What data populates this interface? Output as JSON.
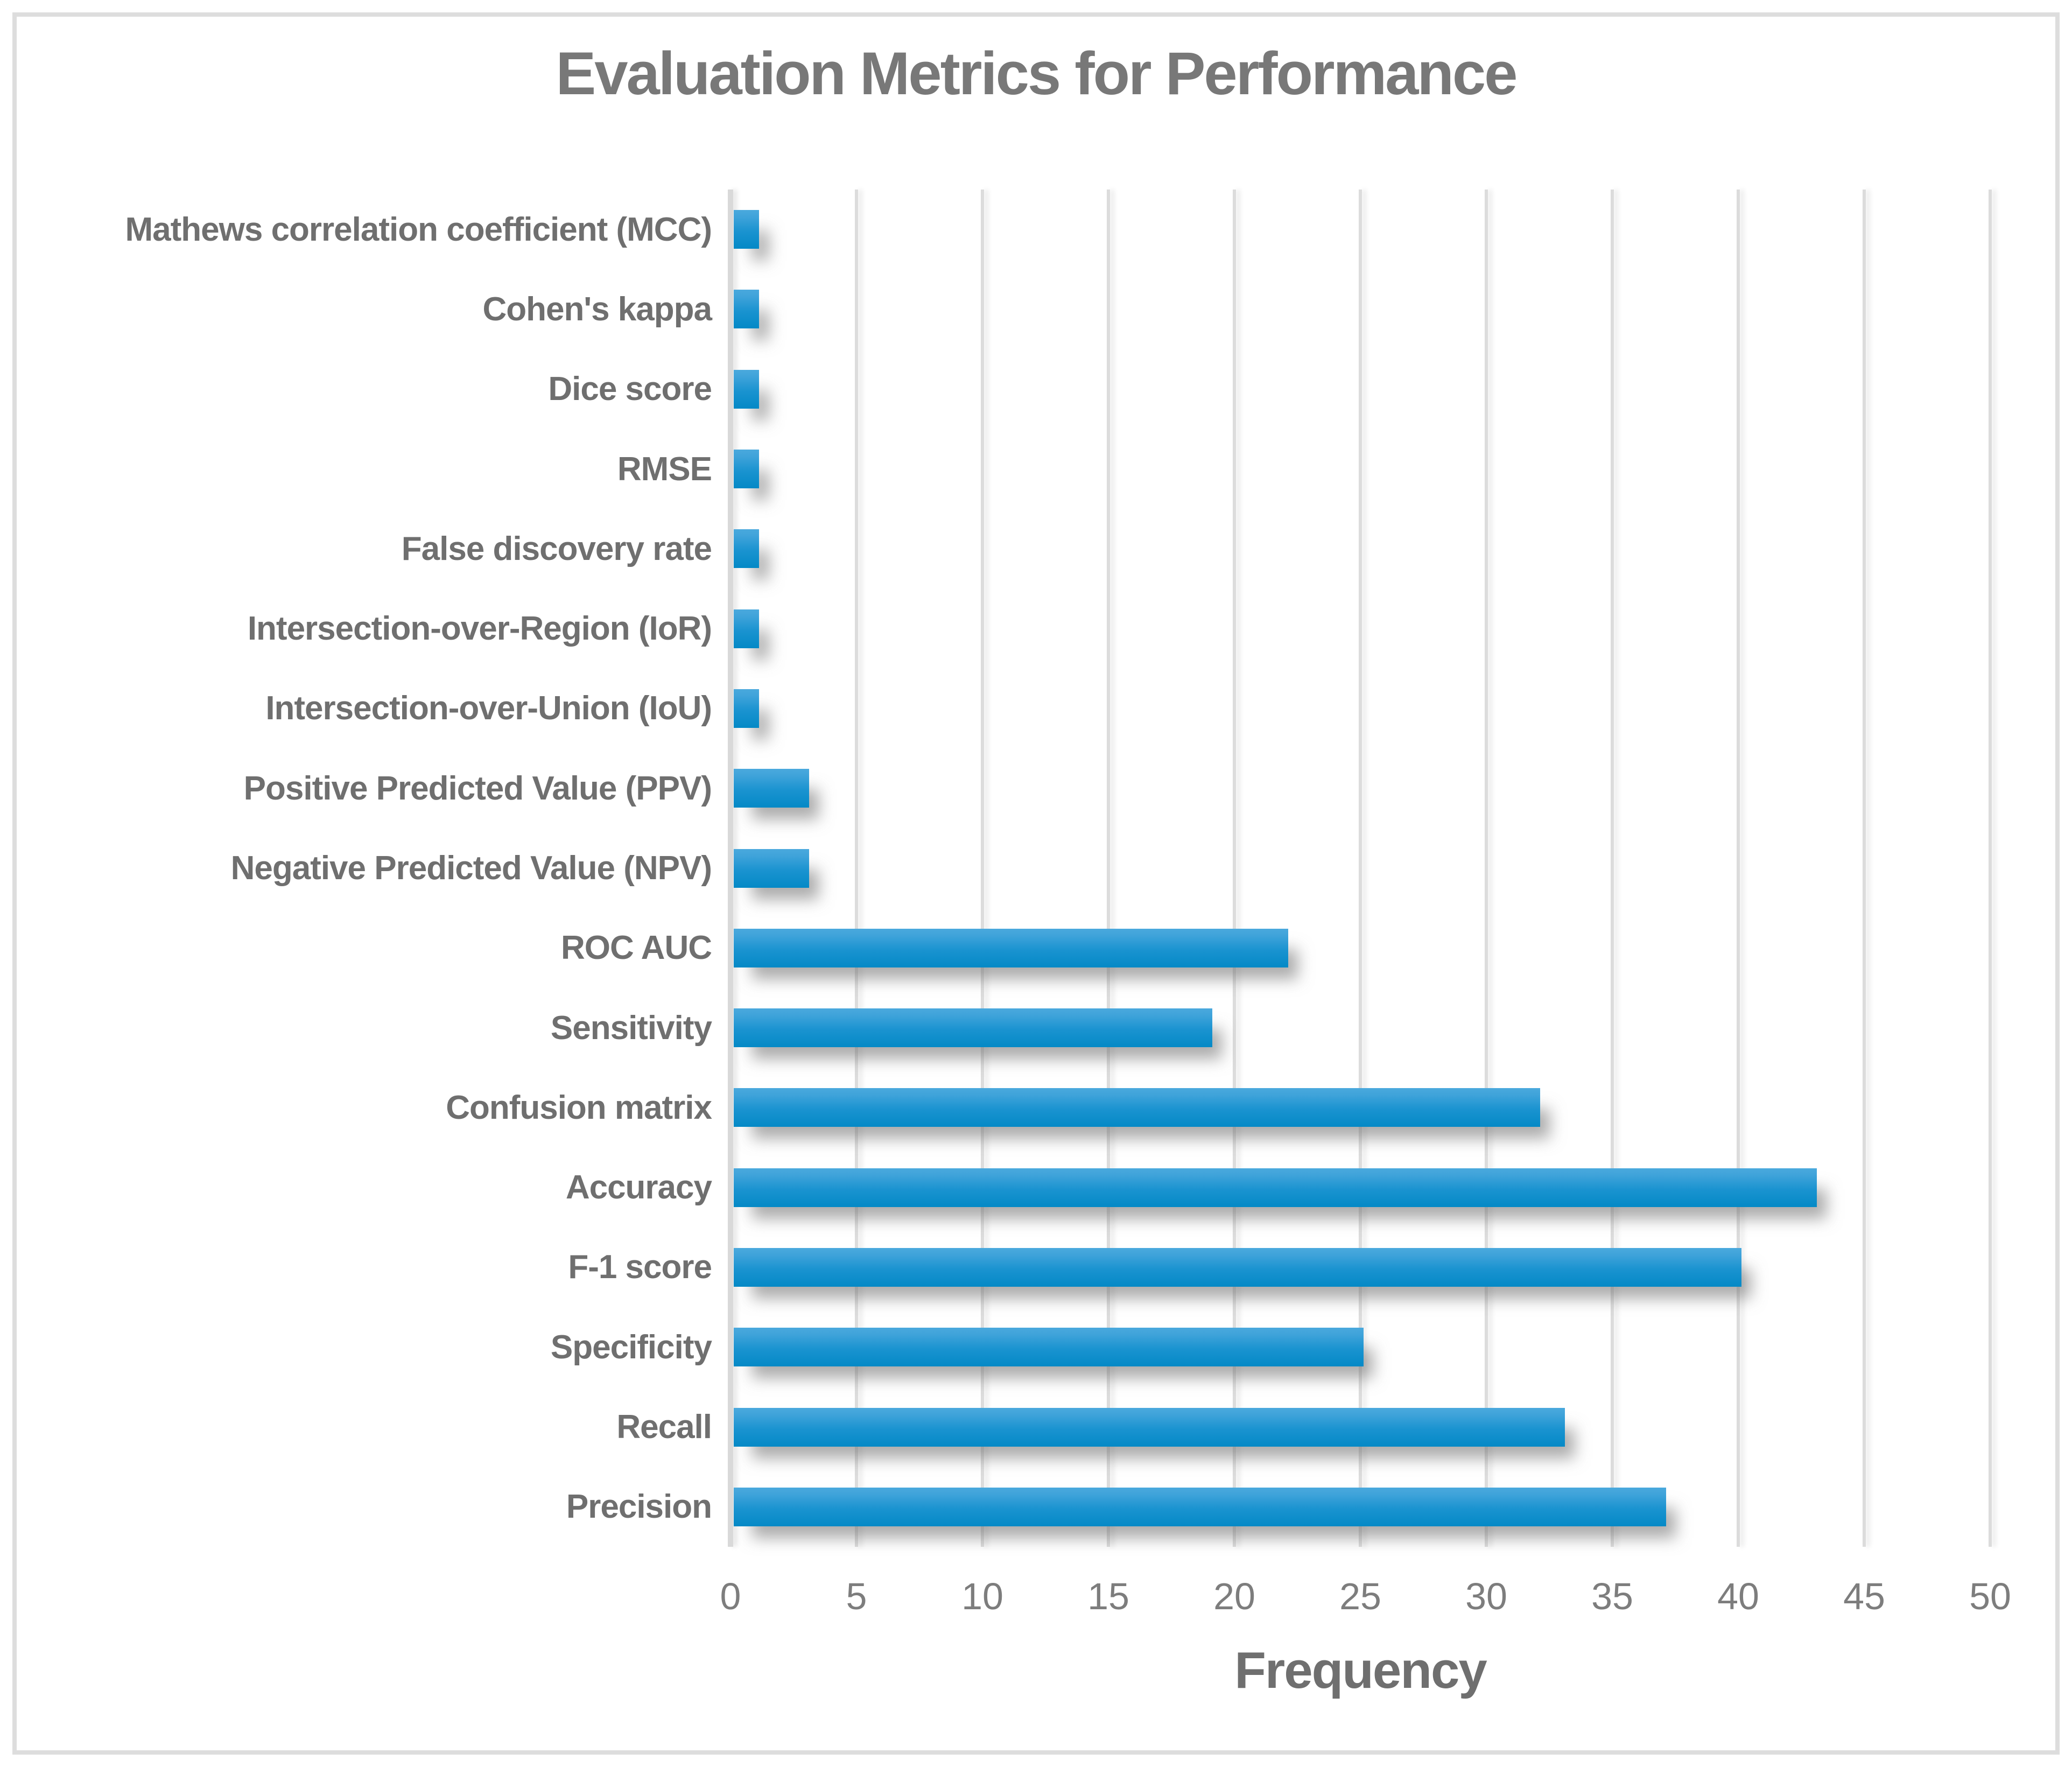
{
  "figure": {
    "border_color": "#dddddd",
    "background": "#ffffff"
  },
  "chart_data": {
    "type": "bar",
    "orientation": "horizontal",
    "title": "Evaluation Metrics for Performance",
    "xlabel": "Frequency",
    "ylabel": "",
    "categories": [
      "Mathews correlation coefficient (MCC)",
      "Cohen's kappa",
      "Dice score",
      "RMSE",
      "False discovery rate",
      "Intersection-over-Region (IoR)",
      "Intersection-over-Union (IoU)",
      "Positive Predicted Value (PPV)",
      "Negative Predicted Value (NPV)",
      "ROC AUC",
      "Sensitivity",
      "Confusion matrix",
      "Accuracy",
      "F-1 score",
      "Specificity",
      "Recall",
      "Precision"
    ],
    "values": [
      1,
      1,
      1,
      1,
      1,
      1,
      1,
      3,
      3,
      22,
      19,
      32,
      43,
      40,
      25,
      33,
      37
    ],
    "xlim": [
      0,
      50
    ],
    "xticks": [
      0,
      5,
      10,
      15,
      20,
      25,
      30,
      35,
      40,
      45,
      50
    ],
    "grid": "vertical-gridlines-on",
    "legend": null,
    "colors": {
      "bar_gradient_top": "#4aa9dd",
      "bar_gradient_bottom": "#0489c6",
      "gridline": "#dcdcdc",
      "axis_line": "#d9d9d9",
      "title_text": "#787878",
      "label_text": "#6f6f6f",
      "tick_text": "#7d7d7d"
    }
  }
}
